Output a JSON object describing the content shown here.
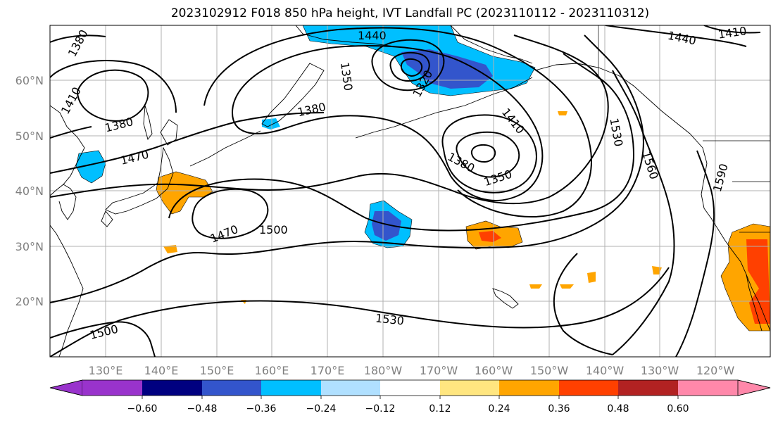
{
  "title": "2023102912 F018 850 hPa height, IVT Landfall PC (2023110112 - 2023110312)",
  "lat_labels": [
    "20°N",
    "30°N",
    "40°N",
    "50°N",
    "60°N"
  ],
  "lon_labels": [
    "130°E",
    "140°E",
    "150°E",
    "160°E",
    "170°E",
    "180°W",
    "170°W",
    "160°W",
    "150°W",
    "140°W",
    "130°W",
    "120°W"
  ],
  "contour_labels": [
    "1380",
    "1410",
    "1440",
    "1440",
    "1410",
    "1350",
    "1320",
    "1380",
    "1380",
    "1470",
    "1410",
    "1530",
    "1560",
    "1590",
    "1380",
    "1350",
    "1470",
    "1500",
    "1500",
    "1530"
  ],
  "colorbar": {
    "ticks": [
      "−0.60",
      "−0.48",
      "−0.36",
      "−0.24",
      "−0.12",
      "0.12",
      "0.24",
      "0.36",
      "0.48",
      "0.60"
    ],
    "colors": [
      "#9933cc",
      "#000080",
      "#3355cc",
      "#00bfff",
      "#b0e0ff",
      "#ffffff",
      "#ffe680",
      "#ffa500",
      "#ff4000",
      "#b22222",
      "#ff88aa"
    ]
  },
  "colors": {
    "coast": "#000000",
    "grid": "#b0b0b0",
    "contour": "#000000"
  }
}
